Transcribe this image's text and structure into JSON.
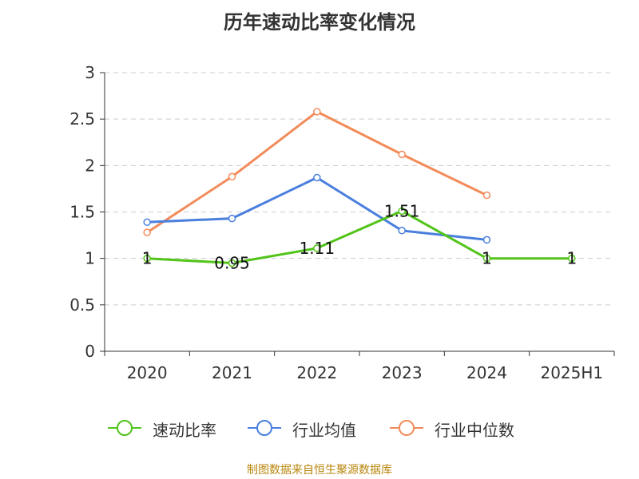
{
  "title": "历年速动比率变化情况",
  "source": "制图数据来自恒生聚源数据库",
  "colors": {
    "quick_ratio": "#52c41a",
    "industry_mean": "#4a7fde",
    "industry_median": "#f38b5a",
    "axis": "#333333",
    "grid": "#cccccc",
    "source": "#b8860b"
  },
  "chart_data": {
    "type": "line",
    "title": "历年速动比率变化情况",
    "categories": [
      "2020",
      "2021",
      "2022",
      "2023",
      "2024",
      "2025H1"
    ],
    "ylim": [
      0,
      3
    ],
    "yticks": [
      "0",
      "0.5",
      "1",
      "1.5",
      "2",
      "2.5",
      "3"
    ],
    "grid": true,
    "legend_position": "bottom",
    "series": [
      {
        "name": "速动比率",
        "color": "#52c41a",
        "values": [
          1.0,
          0.95,
          1.11,
          1.51,
          1.0,
          1.0
        ],
        "labels": [
          "1",
          "0.95",
          "1.11",
          "1.51",
          "1",
          "1"
        ]
      },
      {
        "name": "行业均值",
        "color": "#4a7fde",
        "values": [
          1.39,
          1.43,
          1.87,
          1.3,
          1.2,
          null
        ],
        "labels": []
      },
      {
        "name": "行业中位数",
        "color": "#f38b5a",
        "values": [
          1.28,
          1.88,
          2.58,
          2.12,
          1.68,
          null
        ],
        "labels": []
      }
    ]
  }
}
